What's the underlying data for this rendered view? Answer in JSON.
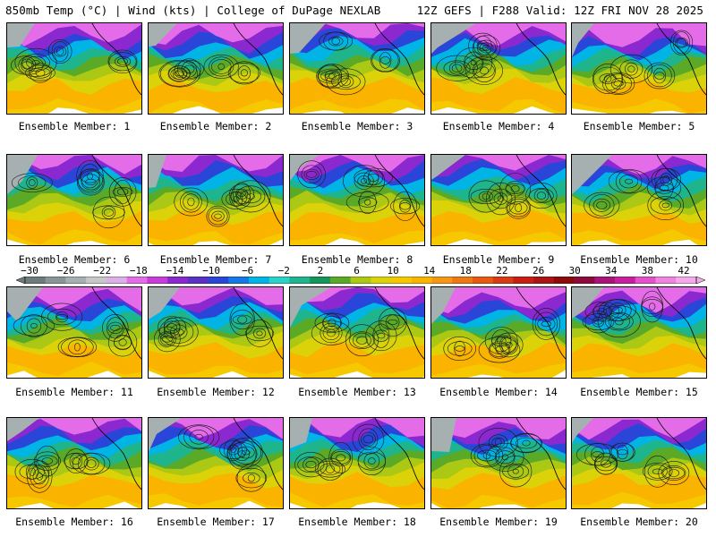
{
  "header": {
    "left": "850mb Temp (°C) | Wind (kts) | College of DuPage NEXLAB",
    "right": "12Z GEFS | F288 Valid: 12Z FRI NOV 28 2025"
  },
  "members": [
    "Ensemble Member: 1",
    "Ensemble Member: 2",
    "Ensemble Member: 3",
    "Ensemble Member: 4",
    "Ensemble Member: 5",
    "Ensemble Member: 6",
    "Ensemble Member: 7",
    "Ensemble Member: 8",
    "Ensemble Member: 9",
    "Ensemble Member: 10",
    "Ensemble Member: 11",
    "Ensemble Member: 12",
    "Ensemble Member: 13",
    "Ensemble Member: 14",
    "Ensemble Member: 15",
    "Ensemble Member: 16",
    "Ensemble Member: 17",
    "Ensemble Member: 18",
    "Ensemble Member: 19",
    "Ensemble Member: 20"
  ],
  "colorbar": {
    "ticks": [
      "−30",
      "−26",
      "−22",
      "−18",
      "−14",
      "−10",
      "−6",
      "−2",
      "2",
      "6",
      "10",
      "14",
      "18",
      "22",
      "26",
      "30",
      "34",
      "38",
      "42"
    ],
    "colors": [
      "#6e7b7b",
      "#8a9696",
      "#a6b0b0",
      "#c8c8c8",
      "#dcb0e6",
      "#e46ce8",
      "#c83cd8",
      "#8c28d0",
      "#5a32c8",
      "#2a46d8",
      "#1478e6",
      "#00b4e6",
      "#2ad2c8",
      "#1eb48c",
      "#14965a",
      "#5aaa28",
      "#aac814",
      "#dcd20a",
      "#f5c800",
      "#fab400",
      "#f59614",
      "#ef7814",
      "#e65a14",
      "#d83c14",
      "#c81e14",
      "#aa1414",
      "#8c0a0a",
      "#8c0a3c",
      "#aa1478",
      "#c81ea0",
      "#e650c8",
      "#f082e0",
      "#f5aaeb"
    ]
  }
}
